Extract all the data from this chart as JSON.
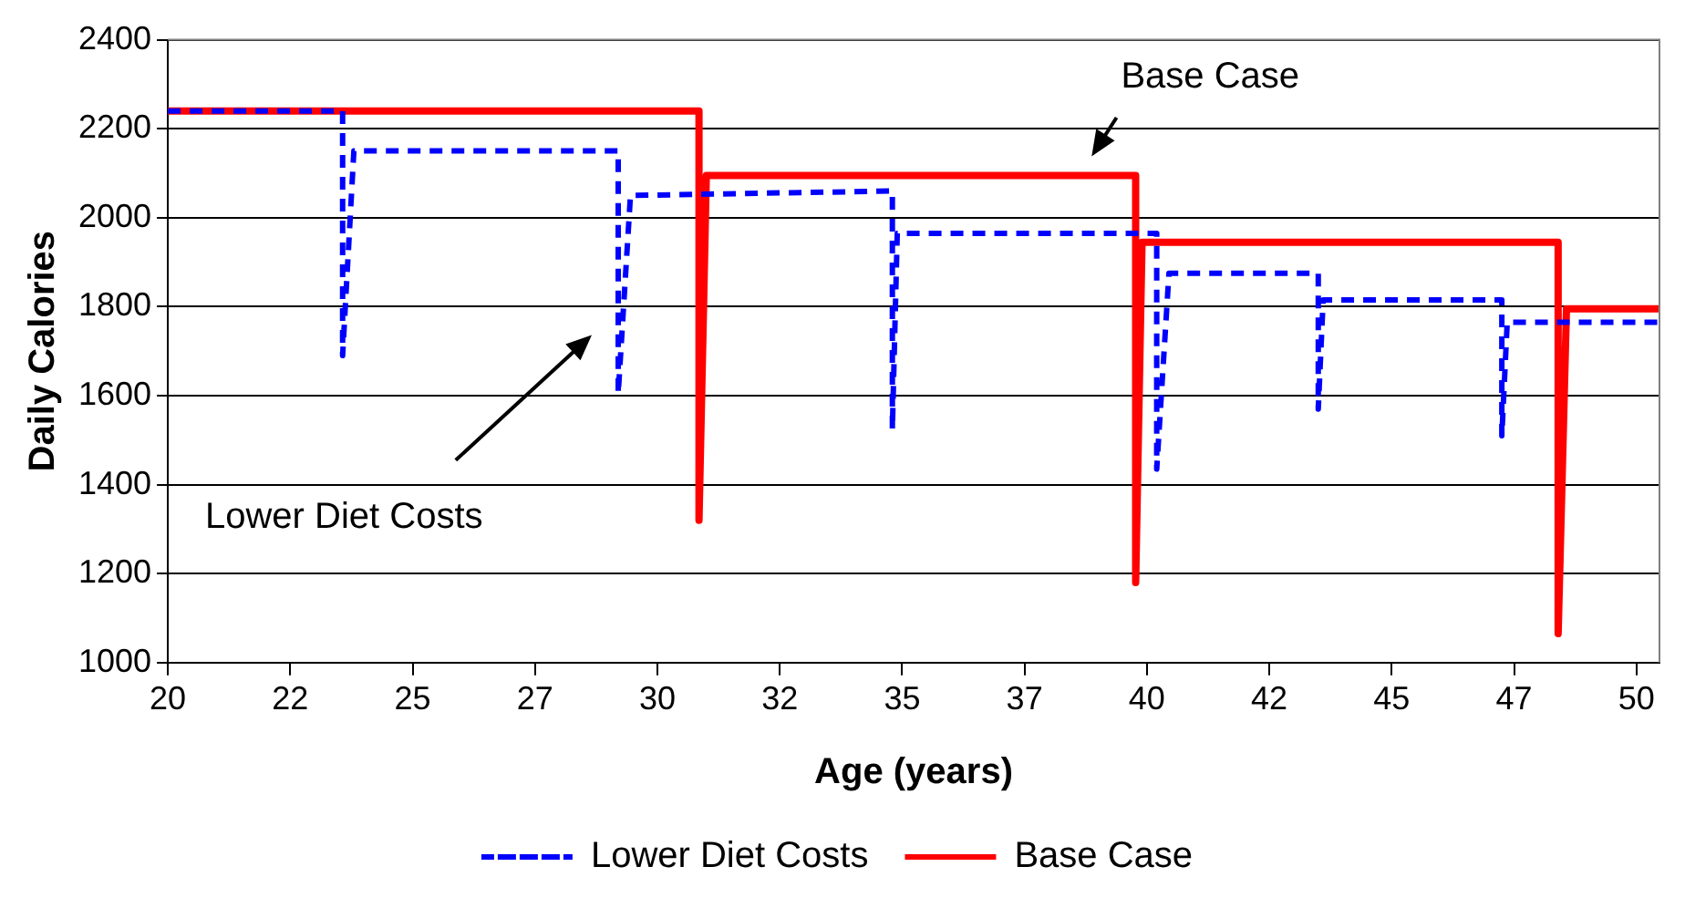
{
  "chart_data": {
    "type": "line",
    "xlabel": "Age (years)",
    "ylabel": "Daily Calories",
    "xlim": [
      20,
      50.47
    ],
    "ylim": [
      1000,
      2400
    ],
    "xticks": [
      20,
      {
        "value": 22.5,
        "label": "22"
      },
      25,
      {
        "value": 27.5,
        "label": "27"
      },
      30,
      {
        "value": 32.5,
        "label": "32"
      },
      35,
      {
        "value": 37.5,
        "label": "37"
      },
      40,
      {
        "value": 42.5,
        "label": "42"
      },
      45,
      {
        "value": 47.5,
        "label": "47"
      },
      50
    ],
    "yticks": [
      1000,
      1200,
      1400,
      1600,
      1800,
      2000,
      2200,
      2400
    ],
    "grid": "y",
    "legend": "bottom",
    "marker": "none",
    "series": [
      {
        "name": "Lower Diet Costs",
        "color": "#0000ff",
        "line_style": "dashed",
        "x": [
          20,
          23.57,
          23.57,
          23.8,
          29.2,
          29.2,
          29.45,
          34.8,
          34.8,
          34.9,
          40.2,
          40.2,
          40.45,
          43.5,
          43.5,
          43.6,
          47.25,
          47.25,
          47.36,
          50.45
        ],
        "values": [
          2240,
          2240,
          1690,
          2150,
          2150,
          1605,
          2050,
          2060,
          1525,
          1965,
          1965,
          1435,
          1875,
          1875,
          1570,
          1815,
          1815,
          1510,
          1765,
          1765
        ]
      },
      {
        "name": "Base Case",
        "color": "#ff0000",
        "line_style": "solid",
        "x": [
          20,
          30.85,
          30.85,
          31.0,
          39.77,
          39.77,
          39.9,
          48.4,
          48.4,
          48.57,
          50.45
        ],
        "values": [
          2240,
          2240,
          1320,
          2095,
          2095,
          1180,
          1945,
          1945,
          1065,
          1795,
          1795
        ]
      }
    ],
    "annotations": [
      "Lower Diet Costs",
      "Base Case"
    ]
  }
}
